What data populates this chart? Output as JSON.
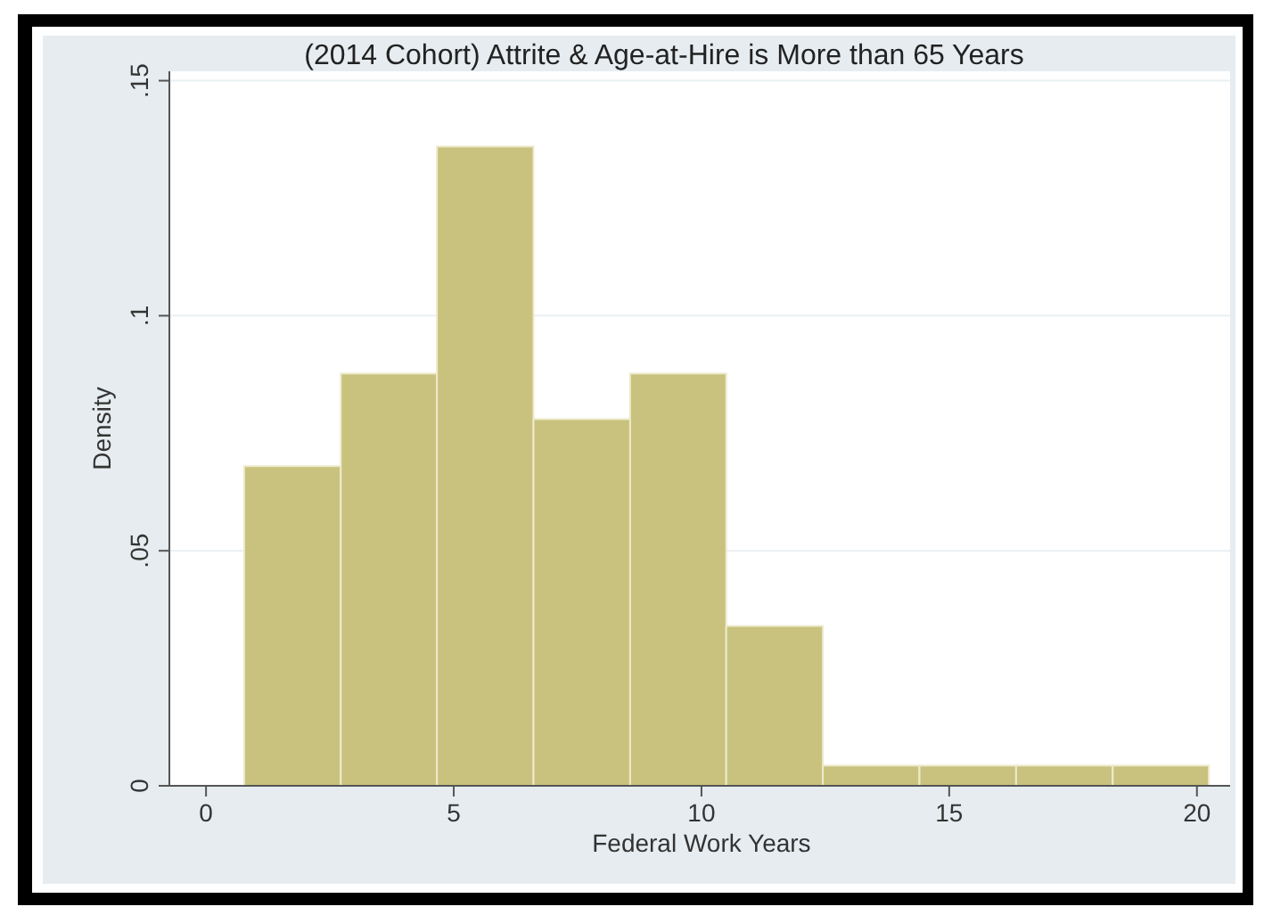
{
  "chart_data": {
    "type": "histogram",
    "title": "(2014 Cohort) Attrite & Age-at-Hire is More than 65 Years",
    "xlabel": "Federal Work Years",
    "ylabel": "Density",
    "bins": [
      0.77,
      2.72,
      4.66,
      6.61,
      8.56,
      10.5,
      12.45,
      14.4,
      16.35,
      18.3,
      20.24
    ],
    "values": [
      0.068,
      0.0877,
      0.136,
      0.078,
      0.0877,
      0.034,
      0.0043,
      0.0043,
      0.0043,
      0.0043
    ],
    "color": "#c8c27e",
    "xlim": [
      -0.74,
      20.67
    ],
    "ylim": [
      0,
      0.152
    ],
    "xticks": [
      0,
      5,
      10,
      15,
      20
    ],
    "yticks": [
      0,
      {
        "value": 0.05,
        "label": ".05"
      },
      {
        "value": 0.1,
        "label": ".1"
      },
      {
        "value": 0.15,
        "label": ".15"
      }
    ],
    "grid": "y"
  }
}
